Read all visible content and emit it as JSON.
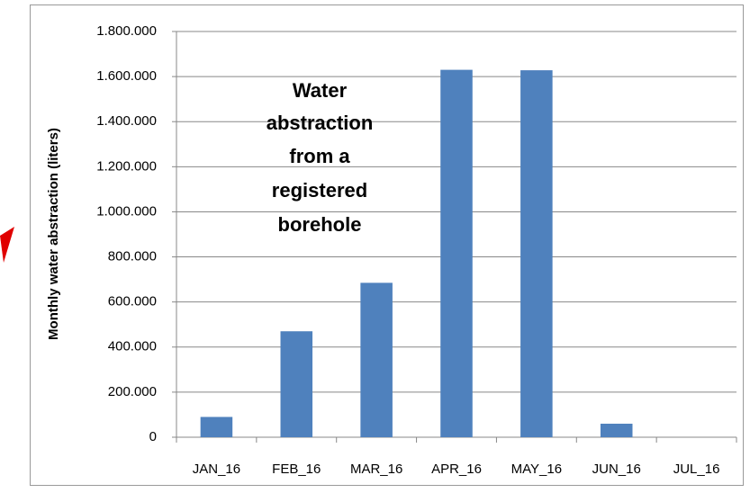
{
  "chart_data": {
    "type": "bar",
    "y_label": "Monthly water abstraction (liters)",
    "annotation": [
      "Water",
      "abstraction",
      "from a",
      "registered",
      "borehole"
    ],
    "categories": [
      "JAN_16",
      "FEB_16",
      "MAR_16",
      "APR_16",
      "MAY_16",
      "JUN_16",
      "JUL_16"
    ],
    "values": [
      90000,
      470000,
      685000,
      1630000,
      1628000,
      60000,
      0
    ],
    "color": "#4f81bd",
    "ylim": [
      0,
      1800000
    ],
    "yticks": [
      0,
      {
        "value": 200000,
        "label": "200.000"
      },
      {
        "value": 400000,
        "label": "400.000"
      },
      {
        "value": 600000,
        "label": "600.000"
      },
      {
        "value": 800000,
        "label": "800.000"
      },
      {
        "value": 1000000,
        "label": "1.000.000"
      },
      {
        "value": 1200000,
        "label": "1.200.000"
      },
      {
        "value": 1400000,
        "label": "1.400.000"
      },
      {
        "value": 1600000,
        "label": "1.600.000"
      },
      {
        "value": 1800000,
        "label": "1.800.000"
      }
    ],
    "grid": true
  }
}
